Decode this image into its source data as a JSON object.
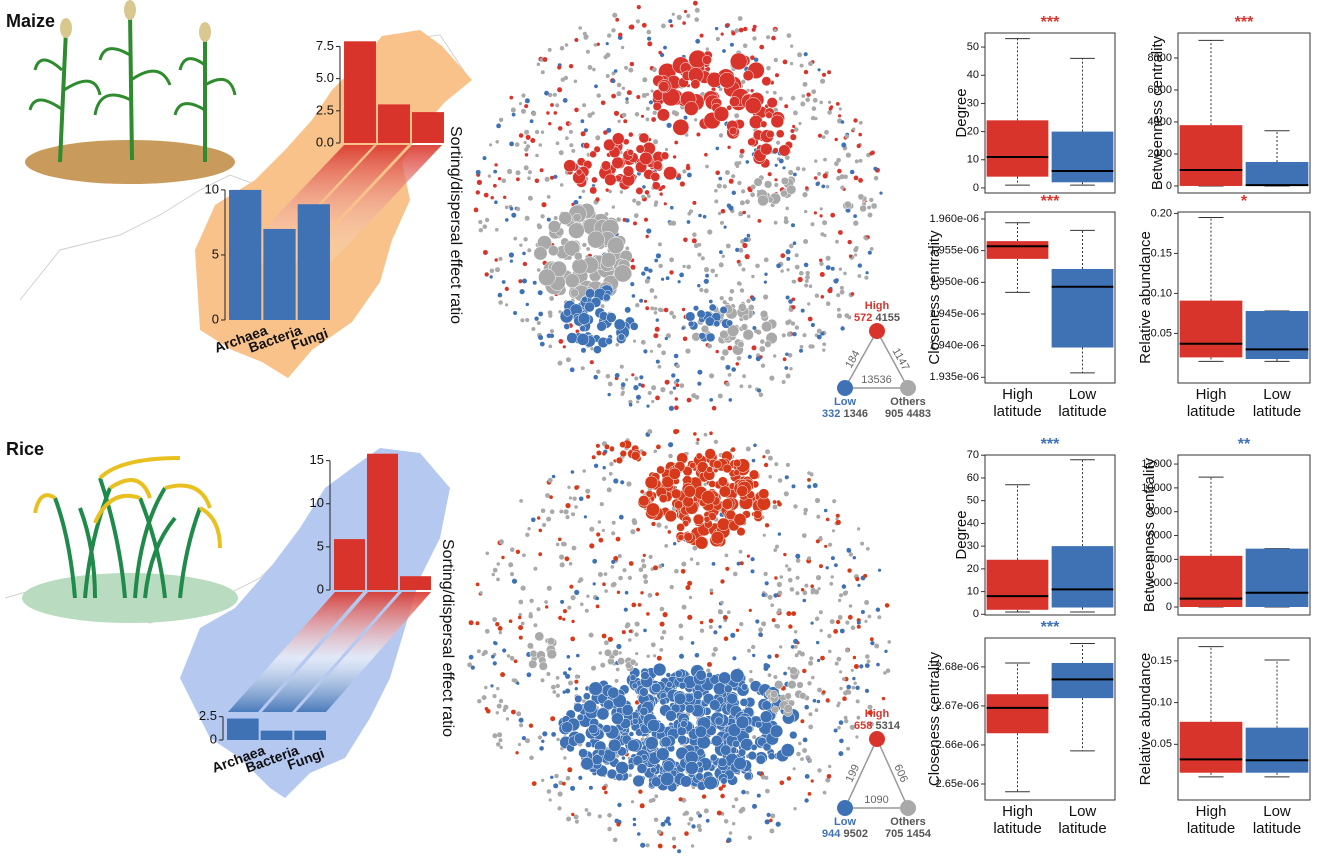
{
  "rows": [
    {
      "label": "Maize",
      "network": {
        "nodes": [
          {
            "name": "High",
            "count": 572,
            "links": 4155
          },
          {
            "name": "Low",
            "count": 332,
            "links": 1346
          },
          {
            "name": "Others",
            "count": 905,
            "links": 4483
          }
        ],
        "edges": [
          184,
          1147,
          13536
        ]
      }
    },
    {
      "label": "Rice",
      "network": {
        "nodes": [
          {
            "name": "High",
            "count": 658,
            "links": 5314
          },
          {
            "name": "Low",
            "count": 944,
            "links": 9502
          },
          {
            "name": "Others",
            "count": 705,
            "links": 1454
          }
        ],
        "edges": [
          199,
          606,
          1090
        ]
      }
    }
  ],
  "chart_data": [
    {
      "type": "bar",
      "color": "#d9342b",
      "categories": [
        null,
        null,
        null
      ],
      "values": [
        7.9,
        3.0,
        2.4
      ],
      "ylim": [
        0,
        8
      ],
      "yticks": [
        {
          "value": 0,
          "label": "0.0"
        },
        {
          "value": 2.5,
          "label": "2.5"
        },
        {
          "value": 5,
          "label": "5.0"
        },
        {
          "value": 7.5,
          "label": "7.5"
        }
      ]
    },
    {
      "type": "bar",
      "color": "#3f72b5",
      "categories": [
        "Archaea",
        "Bacteria",
        "Fungi"
      ],
      "values": [
        10,
        7,
        8.9
      ],
      "ylim": [
        0,
        10.3
      ],
      "yticks": [
        0,
        5,
        10
      ],
      "y_label": "Sorting/dispersal effect ratio"
    },
    {
      "type": "box",
      "y_label": "Degree",
      "significance": "***",
      "significance_color": "#d9342b",
      "categories": [
        null,
        null
      ],
      "ylim": [
        -1.8,
        55
      ],
      "yticks": [
        0,
        10,
        20,
        30,
        40,
        50
      ],
      "boxes": [
        {
          "color": "#d9342b",
          "min": 1,
          "q1": 4,
          "median": 11,
          "q3": 24,
          "max": 53
        },
        {
          "color": "#3f72b5",
          "min": 1,
          "q1": 2,
          "median": 6,
          "q3": 20,
          "max": 46
        }
      ]
    },
    {
      "type": "box",
      "y_label": "Betweenness centrality",
      "significance": "***",
      "significance_color": "#d9342b",
      "categories": [
        null,
        null
      ],
      "ylim": [
        -440,
        9560
      ],
      "yticks": [
        0,
        2000,
        4000,
        6000,
        8000
      ],
      "boxes": [
        {
          "color": "#d9342b",
          "min": 0,
          "q1": 0,
          "median": 1000,
          "q3": 3800,
          "max": 9100
        },
        {
          "color": "#3f72b5",
          "min": 0,
          "q1": 0,
          "median": 50,
          "q3": 1500,
          "max": 3450
        }
      ]
    },
    {
      "type": "box",
      "y_label": "Closeness centrality",
      "significance": "***",
      "significance_color": "#d9342b",
      "categories": [
        "High latitude",
        "Low latitude"
      ],
      "ylim": [
        1.9341e-06,
        1.9611e-06
      ],
      "yticks": [
        {
          "value": 1.935e-06,
          "label": "1.935e-06"
        },
        {
          "value": 1.94e-06,
          "label": "1.940e-06"
        },
        {
          "value": 1.945e-06,
          "label": "1.945e-06"
        },
        {
          "value": 1.95e-06,
          "label": "1.950e-06"
        },
        {
          "value": 1.955e-06,
          "label": "1.955e-06"
        },
        {
          "value": 1.96e-06,
          "label": "1.960e-06"
        }
      ],
      "boxes": [
        {
          "color": "#d9342b",
          "min": 1.9484e-06,
          "q1": 1.9537e-06,
          "median": 1.9557e-06,
          "q3": 1.9565e-06,
          "max": 1.9594e-06
        },
        {
          "color": "#3f72b5",
          "min": 1.9357e-06,
          "q1": 1.9397e-06,
          "median": 1.9493e-06,
          "q3": 1.9521e-06,
          "max": 1.9582e-06
        }
      ]
    },
    {
      "type": "box",
      "y_label": "Relative abundance",
      "significance": "*",
      "significance_color": "#d9342b",
      "categories": [
        "High latitude",
        "Low latitude"
      ],
      "ylim": [
        -0.012,
        0.2018
      ],
      "yticks": [
        {
          "value": 0.05,
          "label": "0.05"
        },
        {
          "value": 0.1,
          "label": "0.10"
        },
        {
          "value": 0.15,
          "label": "0.15"
        },
        {
          "value": 0.2,
          "label": "0.20"
        }
      ],
      "boxes": [
        {
          "color": "#d9342b",
          "min": 0.015,
          "q1": 0.02,
          "median": 0.037,
          "q3": 0.091,
          "max": 0.195
        },
        {
          "color": "#3f72b5",
          "min": 0.015,
          "q1": 0.018,
          "median": 0.03,
          "q3": 0.078,
          "max": 0.078
        }
      ]
    },
    {
      "type": "bar",
      "color": "#d9342b",
      "categories": [
        null,
        null,
        null
      ],
      "values": [
        5.9,
        15.8,
        1.6
      ],
      "ylim": [
        0,
        16
      ],
      "yticks": [
        0,
        5,
        10,
        15
      ]
    },
    {
      "type": "bar",
      "color": "#3f72b5",
      "categories": [
        "Archaea",
        "Bacteria",
        "Fungi"
      ],
      "values": [
        2.3,
        1.0,
        1.0
      ],
      "ylim": [
        0,
        3
      ],
      "yticks": [
        0,
        2.5
      ],
      "y_label": "Sorting/dispersal effect ratio"
    },
    {
      "type": "box",
      "y_label": "Degree",
      "significance": "***",
      "significance_color": "#3f72b5",
      "categories": [
        null,
        null
      ],
      "ylim": [
        -0.3,
        70.1
      ],
      "yticks": [
        0,
        10,
        20,
        30,
        40,
        50,
        60,
        70
      ],
      "boxes": [
        {
          "color": "#d9342b",
          "min": 1,
          "q1": 2,
          "median": 8,
          "q3": 24,
          "max": 57
        },
        {
          "color": "#3f72b5",
          "min": 1,
          "q1": 3,
          "median": 11,
          "q3": 30,
          "max": 68
        }
      ]
    },
    {
      "type": "box",
      "y_label": "Betweenness centrality",
      "significance": "**",
      "significance_color": "#3f72b5",
      "categories": [
        null,
        null
      ],
      "ylim": [
        -670,
        12760
      ],
      "yticks": [
        0,
        2000,
        4000,
        6000,
        8000,
        10000,
        12000
      ],
      "boxes": [
        {
          "color": "#d9342b",
          "min": 0,
          "q1": 0,
          "median": 700,
          "q3": 4300,
          "max": 10900
        },
        {
          "color": "#3f72b5",
          "min": 0,
          "q1": 0,
          "median": 1200,
          "q3": 4900,
          "max": 4900
        }
      ]
    },
    {
      "type": "box",
      "y_label": "Closeness centrality",
      "significance": "***",
      "significance_color": "#3f72b5",
      "categories": [
        "High latitude",
        "Low latitude"
      ],
      "ylim": [
        2.6459e-06,
        2.6874e-06
      ],
      "yticks": [
        {
          "value": 2.65e-06,
          "label": "2.65e-06"
        },
        {
          "value": 2.66e-06,
          "label": "2.66e-06"
        },
        {
          "value": 2.67e-06,
          "label": "2.67e-06"
        },
        {
          "value": 2.68e-06,
          "label": "2.68e-06"
        }
      ],
      "boxes": [
        {
          "color": "#d9342b",
          "min": 2.648e-06,
          "q1": 2.663e-06,
          "median": 2.6695e-06,
          "q3": 2.673e-06,
          "max": 2.681e-06
        },
        {
          "color": "#3f72b5",
          "min": 2.6585e-06,
          "q1": 2.672e-06,
          "median": 2.6768e-06,
          "q3": 2.681e-06,
          "max": 2.686e-06
        }
      ]
    },
    {
      "type": "box",
      "y_label": "Relative abundance",
      "categories": [
        "High latitude",
        "Low latitude"
      ],
      "ylim": [
        -0.0167,
        0.1774
      ],
      "yticks": [
        {
          "value": 0.05,
          "label": "0.05"
        },
        {
          "value": 0.1,
          "label": "0.10"
        },
        {
          "value": 0.15,
          "label": "0.15"
        }
      ],
      "boxes": [
        {
          "color": "#d9342b",
          "min": 0.011,
          "q1": 0.016,
          "median": 0.032,
          "q3": 0.077,
          "max": 0.167
        },
        {
          "color": "#3f72b5",
          "min": 0.011,
          "q1": 0.016,
          "median": 0.031,
          "q3": 0.07,
          "max": 0.151
        }
      ]
    }
  ]
}
